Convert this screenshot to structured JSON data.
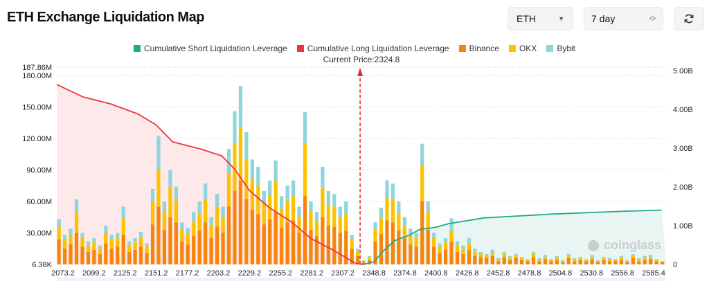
{
  "header": {
    "title": "ETH Exchange Liquidation Map"
  },
  "controls": {
    "symbol": "ETH",
    "range": "7 day",
    "refresh_icon": "refresh-icon"
  },
  "watermark": "coinglass",
  "chart_data": {
    "type": "bar",
    "title": "",
    "current_price_label": "Current Price:2324.8",
    "current_price": 2324.8,
    "legend": [
      {
        "name": "Cumulative Short Liquidation Leverage",
        "color": "#1fa98c"
      },
      {
        "name": "Cumulative Long Liquidation Leverage",
        "color": "#ef3340"
      },
      {
        "name": "Binance",
        "color": "#f7840c"
      },
      {
        "name": "OKX",
        "color": "#fcc200"
      },
      {
        "name": "Bybit",
        "color": "#8ed6dc"
      }
    ],
    "x_tick_labels": [
      "2073.2",
      "2099.2",
      "2125.2",
      "2151.2",
      "2177.2",
      "2203.2",
      "2229.2",
      "2255.2",
      "2281.2",
      "2307.2",
      "2348.8",
      "2374.8",
      "2400.8",
      "2426.8",
      "2452.8",
      "2478.8",
      "2504.8",
      "2530.8",
      "2556.8",
      "2585.4"
    ],
    "y_left": {
      "tick_labels": [
        "6.38K",
        "30.00M",
        "60.00M",
        "90.00M",
        "120.00M",
        "150.00M",
        "180.00M",
        "187.86M"
      ],
      "ticks": [
        0,
        30,
        60,
        90,
        120,
        150,
        180,
        187.86
      ],
      "unit": "M",
      "range": [
        0,
        187.86
      ]
    },
    "y_right": {
      "tick_labels": [
        "0",
        "1.00B",
        "2.00B",
        "3.00B",
        "4.00B",
        "5.00B"
      ],
      "ticks": [
        0,
        1,
        2,
        3,
        4,
        5
      ],
      "unit": "B",
      "range": [
        0,
        5
      ]
    },
    "grid": true,
    "legend_position": "top",
    "series": [
      {
        "name": "Binance",
        "values": [
          24,
          15,
          19,
          30,
          17,
          12,
          14,
          10,
          20,
          15,
          17,
          28,
          12,
          14,
          17,
          11,
          38,
          55,
          33,
          45,
          40,
          22,
          19,
          27,
          32,
          40,
          25,
          36,
          30,
          55,
          70,
          80,
          62,
          52,
          48,
          38,
          43,
          50,
          35,
          40,
          42,
          30,
          65,
          33,
          27,
          45,
          37,
          36,
          30,
          32,
          15,
          8,
          2,
          4,
          22,
          29,
          42,
          40,
          32,
          25,
          19,
          17,
          60,
          33,
          17,
          11,
          14,
          22,
          12,
          10,
          14,
          8,
          7,
          6,
          8,
          3,
          7,
          4,
          6,
          4,
          3,
          7,
          3,
          5,
          3,
          4,
          2,
          6,
          3,
          4,
          3,
          5,
          2,
          4,
          3,
          3,
          4,
          2,
          6,
          3,
          4,
          5,
          3,
          2
        ]
      },
      {
        "name": "OKX",
        "values": [
          12,
          8,
          9,
          20,
          8,
          6,
          7,
          5,
          10,
          8,
          8,
          16,
          6,
          7,
          9,
          6,
          22,
          35,
          17,
          28,
          21,
          11,
          10,
          14,
          17,
          22,
          12,
          19,
          15,
          32,
          45,
          50,
          38,
          29,
          27,
          20,
          23,
          30,
          18,
          21,
          23,
          15,
          50,
          17,
          14,
          28,
          20,
          19,
          15,
          16,
          8,
          4,
          1,
          2,
          11,
          15,
          22,
          22,
          17,
          12,
          9,
          8,
          35,
          17,
          8,
          6,
          7,
          10,
          6,
          5,
          6,
          4,
          3,
          2,
          3,
          2,
          3,
          2,
          2,
          2,
          1,
          3,
          2,
          2,
          1,
          2,
          1,
          2,
          2,
          2,
          1,
          2,
          1,
          2,
          2,
          1,
          2,
          1,
          2,
          2,
          2,
          2,
          1,
          1
        ]
      },
      {
        "name": "Bybit",
        "values": [
          7,
          5,
          6,
          12,
          5,
          4,
          4,
          3,
          7,
          5,
          5,
          11,
          4,
          4,
          5,
          3,
          12,
          32,
          10,
          17,
          13,
          7,
          6,
          9,
          11,
          15,
          8,
          12,
          10,
          23,
          31,
          40,
          26,
          19,
          18,
          12,
          14,
          19,
          12,
          14,
          15,
          10,
          30,
          10,
          9,
          20,
          13,
          12,
          10,
          12,
          5,
          3,
          1,
          2,
          7,
          10,
          16,
          15,
          11,
          8,
          6,
          5,
          20,
          10,
          5,
          3,
          4,
          12,
          4,
          3,
          5,
          3,
          2,
          2,
          3,
          1,
          2,
          2,
          2,
          1,
          1,
          2,
          1,
          2,
          1,
          2,
          1,
          2,
          1,
          1,
          1,
          2,
          1,
          1,
          1,
          1,
          2,
          1,
          2,
          1,
          2,
          2,
          1,
          0
        ]
      },
      {
        "name": "Cumulative Long Liquidation Leverage",
        "axis": "right",
        "points": [
          [
            2068,
            4.64
          ],
          [
            2090,
            4.32
          ],
          [
            2113,
            4.14
          ],
          [
            2136,
            3.88
          ],
          [
            2151,
            3.6
          ],
          [
            2165,
            3.16
          ],
          [
            2188,
            2.98
          ],
          [
            2206,
            2.8
          ],
          [
            2217,
            2.45
          ],
          [
            2229,
            1.91
          ],
          [
            2246,
            1.46
          ],
          [
            2264,
            1.1
          ],
          [
            2281,
            0.66
          ],
          [
            2298,
            0.39
          ],
          [
            2311,
            0.18
          ],
          [
            2325,
            0.02
          ],
          [
            2335,
            0
          ]
        ]
      },
      {
        "name": "Cumulative Short Liquidation Leverage",
        "axis": "right",
        "points": [
          [
            2335,
            0
          ],
          [
            2349,
            0.07
          ],
          [
            2357,
            0.36
          ],
          [
            2366,
            0.61
          ],
          [
            2378,
            0.75
          ],
          [
            2387,
            0.9
          ],
          [
            2401,
            0.96
          ],
          [
            2411,
            1.05
          ],
          [
            2441,
            1.2
          ],
          [
            2499,
            1.3
          ],
          [
            2557,
            1.37
          ],
          [
            2592,
            1.4
          ]
        ]
      }
    ]
  }
}
